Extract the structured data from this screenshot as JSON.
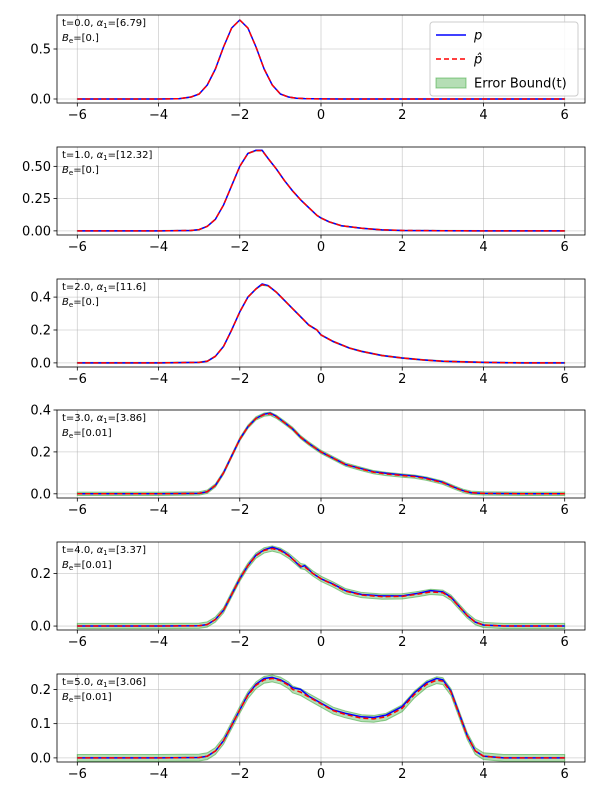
{
  "chart_data": [
    {
      "type": "line",
      "annotation_line1": "t=0.0, α₁=[6.79]",
      "annotation_line2": "B_e=[0.]",
      "xlim": [
        -6.5,
        6.5
      ],
      "ylim": [
        -0.04,
        0.84
      ],
      "xticks": [
        -6,
        -4,
        -2,
        0,
        2,
        4,
        6
      ],
      "xtick_labels": [
        "−6",
        "−4",
        "−2",
        "0",
        "2",
        "4",
        "6"
      ],
      "yticks": [
        0.0,
        0.5
      ],
      "ytick_labels": [
        "0.0",
        "0.5"
      ],
      "grid": true,
      "legend": {
        "placement": "upper-right",
        "entries": [
          {
            "label": "p",
            "style": "solid",
            "color": "#0000ff"
          },
          {
            "label": "p̂",
            "style": "dashed",
            "color": "#ff0000"
          },
          {
            "label": "Error Bound(t)",
            "style": "band",
            "color": "#2ca02c"
          }
        ]
      },
      "error_band_halfwidth": 0.002,
      "series": [
        {
          "name": "p",
          "color": "#0000ff",
          "x": [
            -6,
            -5,
            -4,
            -3.5,
            -3.2,
            -3,
            -2.8,
            -2.6,
            -2.4,
            -2.2,
            -2.0,
            -1.8,
            -1.6,
            -1.4,
            -1.2,
            -1.0,
            -0.8,
            -0.6,
            -0.4,
            -0.2,
            0,
            0.5,
            1,
            2,
            3,
            4,
            5,
            6
          ],
          "y": [
            0,
            0,
            0,
            0.003,
            0.02,
            0.05,
            0.14,
            0.3,
            0.52,
            0.71,
            0.79,
            0.71,
            0.52,
            0.3,
            0.14,
            0.05,
            0.02,
            0.008,
            0.004,
            0.002,
            0.001,
            0,
            0,
            0,
            0,
            0,
            0,
            0
          ]
        },
        {
          "name": "p̂",
          "color": "#ff0000",
          "x": [
            -6,
            -5,
            -4,
            -3.5,
            -3.2,
            -3,
            -2.8,
            -2.6,
            -2.4,
            -2.2,
            -2.0,
            -1.8,
            -1.6,
            -1.4,
            -1.2,
            -1.0,
            -0.8,
            -0.6,
            -0.4,
            -0.2,
            0,
            0.5,
            1,
            2,
            3,
            4,
            5,
            6
          ],
          "y": [
            0,
            0,
            0,
            0.003,
            0.02,
            0.05,
            0.14,
            0.3,
            0.52,
            0.71,
            0.79,
            0.71,
            0.52,
            0.3,
            0.14,
            0.05,
            0.02,
            0.008,
            0.004,
            0.002,
            0.001,
            0,
            0,
            0,
            0,
            0,
            0,
            0
          ]
        }
      ]
    },
    {
      "type": "line",
      "annotation_line1": "t=1.0, α₁=[12.32]",
      "annotation_line2": "B_e=[0.]",
      "xlim": [
        -6.5,
        6.5
      ],
      "ylim": [
        -0.032,
        0.65
      ],
      "xticks": [
        -6,
        -4,
        -2,
        0,
        2,
        4,
        6
      ],
      "xtick_labels": [
        "−6",
        "−4",
        "−2",
        "0",
        "2",
        "4",
        "6"
      ],
      "yticks": [
        0.0,
        0.25,
        0.5
      ],
      "ytick_labels": [
        "0.00",
        "0.25",
        "0.50"
      ],
      "grid": true,
      "error_band_halfwidth": 0.003,
      "series": [
        {
          "name": "p",
          "color": "#0000ff",
          "x": [
            -6,
            -4,
            -3.2,
            -3,
            -2.8,
            -2.6,
            -2.4,
            -2.2,
            -2.0,
            -1.8,
            -1.6,
            -1.45,
            -1.3,
            -1.1,
            -0.9,
            -0.7,
            -0.5,
            -0.3,
            -0.1,
            0,
            0.2,
            0.5,
            1,
            1.5,
            2,
            3,
            4,
            6
          ],
          "y": [
            0,
            0,
            0.003,
            0.01,
            0.035,
            0.09,
            0.2,
            0.35,
            0.5,
            0.6,
            0.625,
            0.625,
            0.56,
            0.48,
            0.39,
            0.31,
            0.24,
            0.18,
            0.12,
            0.1,
            0.07,
            0.04,
            0.02,
            0.008,
            0.003,
            0.001,
            0,
            0
          ]
        },
        {
          "name": "p̂",
          "color": "#ff0000",
          "x": [
            -6,
            -4,
            -3.2,
            -3,
            -2.8,
            -2.6,
            -2.4,
            -2.2,
            -2.0,
            -1.8,
            -1.6,
            -1.45,
            -1.3,
            -1.1,
            -0.9,
            -0.7,
            -0.5,
            -0.3,
            -0.1,
            0,
            0.2,
            0.5,
            1,
            1.5,
            2,
            3,
            4,
            6
          ],
          "y": [
            0,
            0,
            0.003,
            0.01,
            0.035,
            0.09,
            0.2,
            0.35,
            0.5,
            0.6,
            0.622,
            0.622,
            0.56,
            0.48,
            0.39,
            0.31,
            0.24,
            0.18,
            0.12,
            0.1,
            0.07,
            0.04,
            0.02,
            0.008,
            0.003,
            0.001,
            0,
            0
          ]
        }
      ]
    },
    {
      "type": "line",
      "annotation_line1": "t=2.0, α₁=[11.6]",
      "annotation_line2": "B_e=[0.]",
      "xlim": [
        -6.5,
        6.5
      ],
      "ylim": [
        -0.025,
        0.51
      ],
      "xticks": [
        -6,
        -4,
        -2,
        0,
        2,
        4,
        6
      ],
      "xtick_labels": [
        "−6",
        "−4",
        "−2",
        "0",
        "2",
        "4",
        "6"
      ],
      "yticks": [
        0.0,
        0.2,
        0.4
      ],
      "ytick_labels": [
        "0.0",
        "0.2",
        "0.4"
      ],
      "grid": true,
      "error_band_halfwidth": 0.003,
      "series": [
        {
          "name": "p",
          "color": "#0000ff",
          "x": [
            -6,
            -4,
            -3,
            -2.8,
            -2.6,
            -2.4,
            -2.2,
            -2.0,
            -1.8,
            -1.6,
            -1.45,
            -1.3,
            -1.1,
            -0.9,
            -0.7,
            -0.5,
            -0.3,
            -0.1,
            0,
            0.3,
            0.7,
            1,
            1.5,
            2,
            2.5,
            3,
            4,
            5,
            6
          ],
          "y": [
            0,
            0,
            0.003,
            0.01,
            0.04,
            0.1,
            0.2,
            0.31,
            0.4,
            0.45,
            0.48,
            0.47,
            0.43,
            0.38,
            0.33,
            0.28,
            0.23,
            0.2,
            0.17,
            0.13,
            0.09,
            0.07,
            0.045,
            0.03,
            0.018,
            0.01,
            0.003,
            0,
            0
          ]
        },
        {
          "name": "p̂",
          "color": "#ff0000",
          "x": [
            -6,
            -4,
            -3,
            -2.8,
            -2.6,
            -2.4,
            -2.2,
            -2.0,
            -1.8,
            -1.6,
            -1.45,
            -1.3,
            -1.1,
            -0.9,
            -0.7,
            -0.5,
            -0.3,
            -0.1,
            0,
            0.3,
            0.7,
            1,
            1.5,
            2,
            2.5,
            3,
            4,
            5,
            6
          ],
          "y": [
            0,
            0,
            0.003,
            0.01,
            0.04,
            0.1,
            0.2,
            0.31,
            0.4,
            0.45,
            0.475,
            0.468,
            0.43,
            0.38,
            0.33,
            0.28,
            0.23,
            0.2,
            0.17,
            0.13,
            0.09,
            0.07,
            0.045,
            0.03,
            0.018,
            0.01,
            0.003,
            0,
            0
          ]
        }
      ]
    },
    {
      "type": "line",
      "annotation_line1": "t=3.0, α₁=[3.86]",
      "annotation_line2": "B_e=[0.01]",
      "xlim": [
        -6.5,
        6.5
      ],
      "ylim": [
        -0.02,
        0.4
      ],
      "xticks": [
        -6,
        -4,
        -2,
        0,
        2,
        4,
        6
      ],
      "xtick_labels": [
        "−6",
        "−4",
        "−2",
        "0",
        "2",
        "4",
        "6"
      ],
      "yticks": [
        0.0,
        0.2,
        0.4
      ],
      "ytick_labels": [
        "0.0",
        "0.2",
        "0.4"
      ],
      "grid": true,
      "error_band_halfwidth": 0.008,
      "series": [
        {
          "name": "p",
          "color": "#0000ff",
          "x": [
            -6,
            -4,
            -3,
            -2.8,
            -2.6,
            -2.4,
            -2.2,
            -2.0,
            -1.8,
            -1.6,
            -1.4,
            -1.25,
            -1.1,
            -0.9,
            -0.7,
            -0.5,
            -0.3,
            0,
            0.3,
            0.6,
            1,
            1.3,
            1.6,
            2,
            2.3,
            2.6,
            3,
            3.3,
            3.5,
            3.7,
            4,
            5,
            6
          ],
          "y": [
            0,
            0,
            0.002,
            0.01,
            0.04,
            0.1,
            0.18,
            0.26,
            0.32,
            0.36,
            0.38,
            0.385,
            0.37,
            0.34,
            0.31,
            0.27,
            0.24,
            0.2,
            0.17,
            0.14,
            0.12,
            0.105,
            0.098,
            0.09,
            0.085,
            0.075,
            0.055,
            0.03,
            0.015,
            0.005,
            0.002,
            0,
            0
          ]
        },
        {
          "name": "p̂",
          "color": "#ff0000",
          "x": [
            -6,
            -4,
            -3,
            -2.8,
            -2.6,
            -2.4,
            -2.2,
            -2.0,
            -1.8,
            -1.6,
            -1.4,
            -1.25,
            -1.1,
            -0.9,
            -0.7,
            -0.5,
            -0.3,
            0,
            0.3,
            0.6,
            1,
            1.3,
            1.6,
            2,
            2.3,
            2.6,
            3,
            3.3,
            3.5,
            3.7,
            4,
            5,
            6
          ],
          "y": [
            0,
            0,
            0.002,
            0.01,
            0.04,
            0.1,
            0.18,
            0.26,
            0.32,
            0.36,
            0.378,
            0.382,
            0.368,
            0.34,
            0.31,
            0.27,
            0.24,
            0.2,
            0.17,
            0.14,
            0.118,
            0.103,
            0.095,
            0.087,
            0.082,
            0.072,
            0.053,
            0.029,
            0.014,
            0.005,
            0.002,
            0,
            0
          ]
        }
      ]
    },
    {
      "type": "line",
      "annotation_line1": "t=4.0, α₁=[3.37]",
      "annotation_line2": "B_e=[0.01]",
      "xlim": [
        -6.5,
        6.5
      ],
      "ylim": [
        -0.015,
        0.32
      ],
      "xticks": [
        -6,
        -4,
        -2,
        0,
        2,
        4,
        6
      ],
      "xtick_labels": [
        "−6",
        "−4",
        "−2",
        "0",
        "2",
        "4",
        "6"
      ],
      "yticks": [
        0.0,
        0.2
      ],
      "ytick_labels": [
        "0.0",
        "0.2"
      ],
      "grid": true,
      "error_band_halfwidth": 0.01,
      "series": [
        {
          "name": "p",
          "color": "#0000ff",
          "x": [
            -6,
            -4,
            -3,
            -2.8,
            -2.6,
            -2.4,
            -2.2,
            -2.0,
            -1.8,
            -1.6,
            -1.4,
            -1.2,
            -1.0,
            -0.8,
            -0.6,
            -0.5,
            -0.4,
            -0.2,
            0,
            0.3,
            0.6,
            1,
            1.5,
            2,
            2.4,
            2.7,
            3.0,
            3.2,
            3.4,
            3.6,
            3.8,
            4.0,
            4.5,
            6
          ],
          "y": [
            0,
            0,
            0.001,
            0.006,
            0.025,
            0.06,
            0.12,
            0.18,
            0.23,
            0.27,
            0.29,
            0.3,
            0.29,
            0.27,
            0.24,
            0.225,
            0.23,
            0.2,
            0.18,
            0.16,
            0.135,
            0.12,
            0.115,
            0.115,
            0.125,
            0.135,
            0.13,
            0.11,
            0.075,
            0.04,
            0.015,
            0.004,
            0,
            0
          ]
        },
        {
          "name": "p̂",
          "color": "#ff0000",
          "x": [
            -6,
            -4,
            -3,
            -2.8,
            -2.6,
            -2.4,
            -2.2,
            -2.0,
            -1.8,
            -1.6,
            -1.4,
            -1.2,
            -1.0,
            -0.8,
            -0.6,
            -0.5,
            -0.4,
            -0.2,
            0,
            0.3,
            0.6,
            1,
            1.5,
            2,
            2.4,
            2.7,
            3.0,
            3.2,
            3.4,
            3.6,
            3.8,
            4.0,
            4.5,
            6
          ],
          "y": [
            0,
            0,
            0.001,
            0.006,
            0.025,
            0.06,
            0.12,
            0.18,
            0.23,
            0.268,
            0.288,
            0.295,
            0.287,
            0.268,
            0.242,
            0.228,
            0.225,
            0.2,
            0.18,
            0.158,
            0.133,
            0.118,
            0.112,
            0.113,
            0.122,
            0.13,
            0.127,
            0.108,
            0.074,
            0.04,
            0.015,
            0.004,
            0,
            0
          ]
        }
      ]
    },
    {
      "type": "line",
      "annotation_line1": "t=5.0, α₁=[3.06]",
      "annotation_line2": "B_e=[0.01]",
      "xlim": [
        -6.5,
        6.5
      ],
      "ylim": [
        -0.012,
        0.245
      ],
      "xticks": [
        -6,
        -4,
        -2,
        0,
        2,
        4,
        6
      ],
      "xtick_labels": [
        "−6",
        "−4",
        "−2",
        "0",
        "2",
        "4",
        "6"
      ],
      "yticks": [
        0.0,
        0.1,
        0.2
      ],
      "ytick_labels": [
        "0.0",
        "0.1",
        "0.2"
      ],
      "grid": true,
      "error_band_halfwidth": 0.01,
      "series": [
        {
          "name": "p",
          "color": "#0000ff",
          "x": [
            -6,
            -4,
            -3,
            -2.8,
            -2.6,
            -2.4,
            -2.2,
            -2.0,
            -1.8,
            -1.6,
            -1.4,
            -1.2,
            -1.0,
            -0.8,
            -0.7,
            -0.5,
            -0.3,
            0,
            0.3,
            0.6,
            1,
            1.3,
            1.6,
            2,
            2.3,
            2.6,
            2.85,
            3.0,
            3.2,
            3.4,
            3.6,
            3.8,
            4.0,
            4.5,
            6
          ],
          "y": [
            0,
            0,
            0.001,
            0.005,
            0.02,
            0.05,
            0.095,
            0.14,
            0.185,
            0.215,
            0.232,
            0.235,
            0.228,
            0.215,
            0.205,
            0.2,
            0.18,
            0.16,
            0.14,
            0.13,
            0.12,
            0.118,
            0.125,
            0.15,
            0.19,
            0.22,
            0.232,
            0.228,
            0.195,
            0.13,
            0.065,
            0.02,
            0.005,
            0,
            0
          ]
        },
        {
          "name": "p̂",
          "color": "#ff0000",
          "x": [
            -6,
            -4,
            -3,
            -2.8,
            -2.6,
            -2.4,
            -2.2,
            -2.0,
            -1.8,
            -1.6,
            -1.4,
            -1.2,
            -1.0,
            -0.8,
            -0.7,
            -0.5,
            -0.3,
            0,
            0.3,
            0.6,
            1,
            1.3,
            1.6,
            2,
            2.3,
            2.6,
            2.85,
            3.0,
            3.2,
            3.4,
            3.6,
            3.8,
            4.0,
            4.5,
            6
          ],
          "y": [
            0,
            0,
            0.001,
            0.005,
            0.02,
            0.05,
            0.095,
            0.14,
            0.183,
            0.212,
            0.228,
            0.232,
            0.226,
            0.212,
            0.2,
            0.192,
            0.178,
            0.158,
            0.138,
            0.127,
            0.116,
            0.114,
            0.12,
            0.145,
            0.185,
            0.215,
            0.227,
            0.224,
            0.192,
            0.128,
            0.064,
            0.02,
            0.005,
            0,
            0
          ]
        }
      ]
    }
  ]
}
